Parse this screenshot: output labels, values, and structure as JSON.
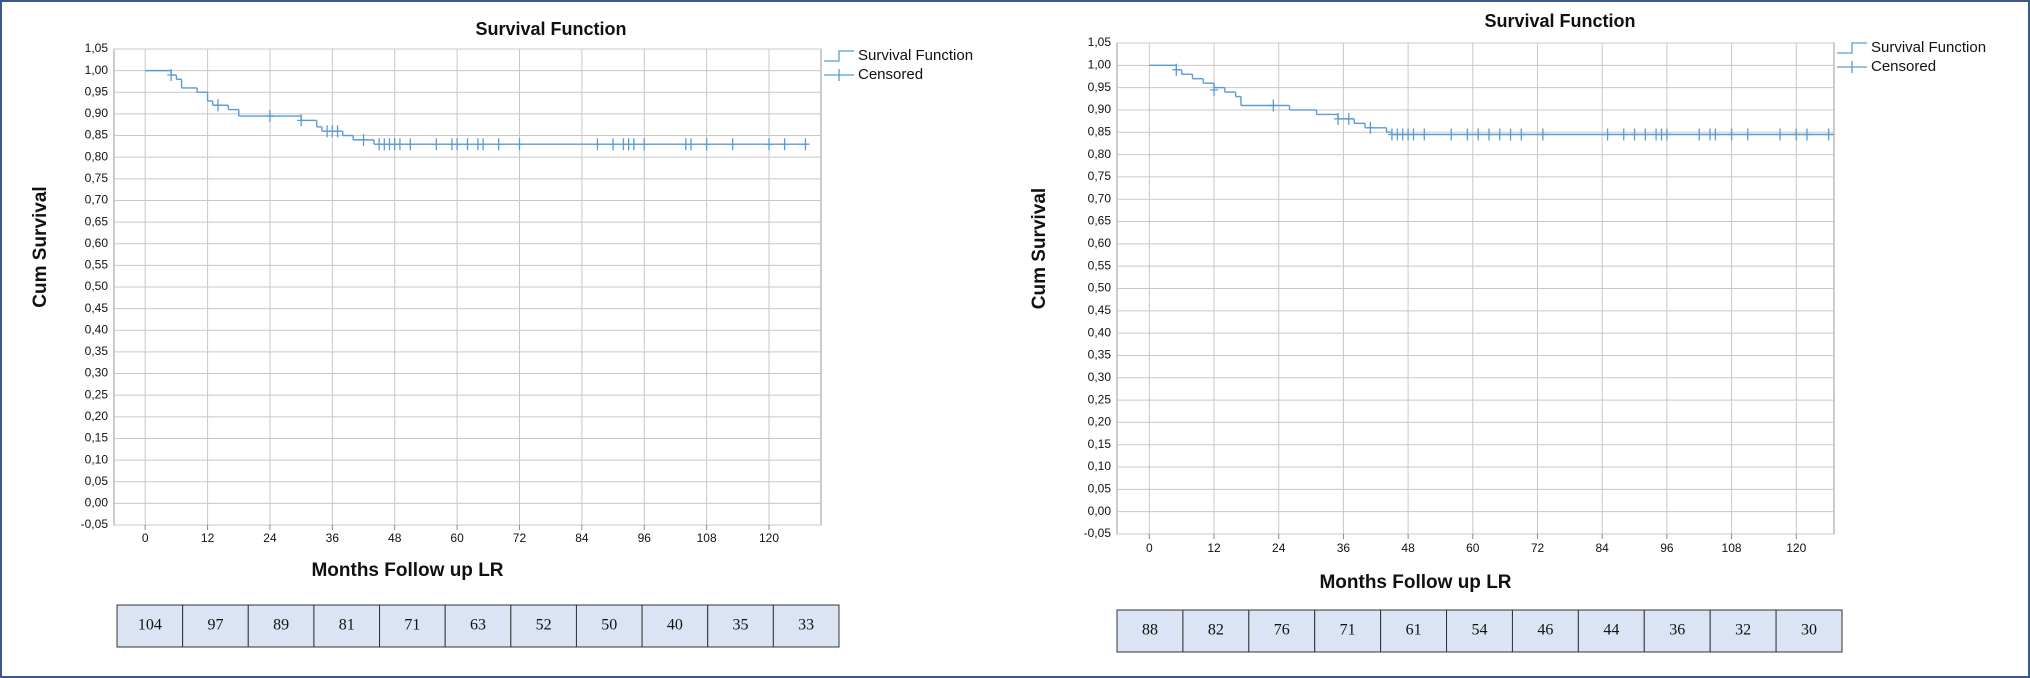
{
  "chart_data": [
    {
      "type": "step",
      "title": "Survival Function",
      "xlabel": "Months Follow up LR",
      "ylabel": "Cum Survival",
      "xlim": [
        -6,
        130
      ],
      "ylim": [
        -0.05,
        1.05
      ],
      "xticks": [
        0,
        12,
        24,
        36,
        48,
        60,
        72,
        84,
        96,
        108,
        120
      ],
      "yticks": [
        {
          "value": -0.05,
          "label": "-0,05"
        },
        {
          "value": 0,
          "label": "0,00"
        },
        {
          "value": 0.05,
          "label": "0,05"
        },
        {
          "value": 0.1,
          "label": "0,10"
        },
        {
          "value": 0.15,
          "label": "0,15"
        },
        {
          "value": 0.2,
          "label": "0,20"
        },
        {
          "value": 0.25,
          "label": "0,25"
        },
        {
          "value": 0.3,
          "label": "0,30"
        },
        {
          "value": 0.35,
          "label": "0,35"
        },
        {
          "value": 0.4,
          "label": "0,40"
        },
        {
          "value": 0.45,
          "label": "0,45"
        },
        {
          "value": 0.5,
          "label": "0,50"
        },
        {
          "value": 0.55,
          "label": "0,55"
        },
        {
          "value": 0.6,
          "label": "0,60"
        },
        {
          "value": 0.65,
          "label": "0,65"
        },
        {
          "value": 0.7,
          "label": "0,70"
        },
        {
          "value": 0.75,
          "label": "0,75"
        },
        {
          "value": 0.8,
          "label": "0,80"
        },
        {
          "value": 0.85,
          "label": "0,85"
        },
        {
          "value": 0.9,
          "label": "0,90"
        },
        {
          "value": 0.95,
          "label": "0,95"
        },
        {
          "value": 1,
          "label": "1,00"
        },
        {
          "value": 1.05,
          "label": "1,05"
        }
      ],
      "grid": true,
      "legend": "right",
      "series": [
        {
          "name": "Survival Function",
          "color": "#5b9bd5",
          "x": [
            0,
            5,
            6,
            7,
            10,
            12,
            13,
            16,
            18,
            30,
            33,
            34,
            38,
            40,
            44,
            127
          ],
          "values": [
            1,
            0.99,
            0.98,
            0.96,
            0.95,
            0.93,
            0.92,
            0.91,
            0.895,
            0.885,
            0.87,
            0.86,
            0.85,
            0.84,
            0.83,
            0.83
          ]
        },
        {
          "name": "Censored",
          "color": "#5b9bd5",
          "marker": "plus",
          "x": [
            5,
            14,
            24,
            30,
            35,
            36,
            37,
            42,
            45,
            46,
            47,
            48,
            49,
            51,
            56,
            59,
            60,
            62,
            64,
            65,
            68,
            72,
            87,
            90,
            92,
            93,
            94,
            96,
            104,
            105,
            108,
            113,
            120,
            123,
            127
          ],
          "values": [
            0.99,
            0.92,
            0.895,
            0.885,
            0.86,
            0.86,
            0.86,
            0.84,
            0.83,
            0.83,
            0.83,
            0.83,
            0.83,
            0.83,
            0.83,
            0.83,
            0.83,
            0.83,
            0.83,
            0.83,
            0.83,
            0.83,
            0.83,
            0.83,
            0.83,
            0.83,
            0.83,
            0.83,
            0.83,
            0.83,
            0.83,
            0.83,
            0.83,
            0.83,
            0.83
          ]
        }
      ],
      "at_risk": [
        104,
        97,
        89,
        81,
        71,
        63,
        52,
        50,
        40,
        35,
        33
      ]
    },
    {
      "type": "step",
      "title": "Survival Function",
      "xlabel": "Months Follow up LR",
      "ylabel": "Cum Survival",
      "xlim": [
        -6,
        127
      ],
      "ylim": [
        -0.05,
        1.05
      ],
      "xticks": [
        0,
        12,
        24,
        36,
        48,
        60,
        72,
        84,
        96,
        108,
        120
      ],
      "yticks": [
        {
          "value": -0.05,
          "label": "-0,05"
        },
        {
          "value": 0,
          "label": "0,00"
        },
        {
          "value": 0.05,
          "label": "0,05"
        },
        {
          "value": 0.1,
          "label": "0,10"
        },
        {
          "value": 0.15,
          "label": "0,15"
        },
        {
          "value": 0.2,
          "label": "0,20"
        },
        {
          "value": 0.25,
          "label": "0,25"
        },
        {
          "value": 0.3,
          "label": "0,30"
        },
        {
          "value": 0.35,
          "label": "0,35"
        },
        {
          "value": 0.4,
          "label": "0,40"
        },
        {
          "value": 0.45,
          "label": "0,45"
        },
        {
          "value": 0.5,
          "label": "0,50"
        },
        {
          "value": 0.55,
          "label": "0,55"
        },
        {
          "value": 0.6,
          "label": "0,60"
        },
        {
          "value": 0.65,
          "label": "0,65"
        },
        {
          "value": 0.7,
          "label": "0,70"
        },
        {
          "value": 0.75,
          "label": "0,75"
        },
        {
          "value": 0.8,
          "label": "0,80"
        },
        {
          "value": 0.85,
          "label": "0,85"
        },
        {
          "value": 0.9,
          "label": "0,90"
        },
        {
          "value": 0.95,
          "label": "0,95"
        },
        {
          "value": 1,
          "label": "1,00"
        },
        {
          "value": 1.05,
          "label": "1,05"
        }
      ],
      "grid": true,
      "legend": "right",
      "series": [
        {
          "name": "Survival Function",
          "color": "#5b9bd5",
          "x": [
            0,
            5,
            6,
            8,
            10,
            12,
            14,
            16,
            17,
            26,
            31,
            35,
            38,
            40,
            44,
            45,
            127
          ],
          "values": [
            1,
            0.99,
            0.98,
            0.97,
            0.96,
            0.95,
            0.94,
            0.93,
            0.91,
            0.9,
            0.89,
            0.88,
            0.87,
            0.86,
            0.85,
            0.845,
            0.845
          ]
        },
        {
          "name": "Censored",
          "color": "#5b9bd5",
          "marker": "plus",
          "x": [
            5,
            12,
            23,
            35,
            37,
            41,
            45,
            46,
            47,
            48,
            49,
            51,
            56,
            59,
            61,
            63,
            65,
            67,
            69,
            73,
            85,
            88,
            90,
            92,
            94,
            95,
            96,
            102,
            104,
            105,
            108,
            111,
            117,
            120,
            122,
            126
          ],
          "values": [
            0.99,
            0.945,
            0.91,
            0.88,
            0.88,
            0.86,
            0.845,
            0.845,
            0.845,
            0.845,
            0.845,
            0.845,
            0.845,
            0.845,
            0.845,
            0.845,
            0.845,
            0.845,
            0.845,
            0.845,
            0.845,
            0.845,
            0.845,
            0.845,
            0.845,
            0.845,
            0.845,
            0.845,
            0.845,
            0.845,
            0.845,
            0.845,
            0.845,
            0.845,
            0.845,
            0.845
          ]
        }
      ],
      "at_risk": [
        88,
        82,
        76,
        71,
        61,
        54,
        46,
        44,
        36,
        32,
        30
      ]
    }
  ]
}
